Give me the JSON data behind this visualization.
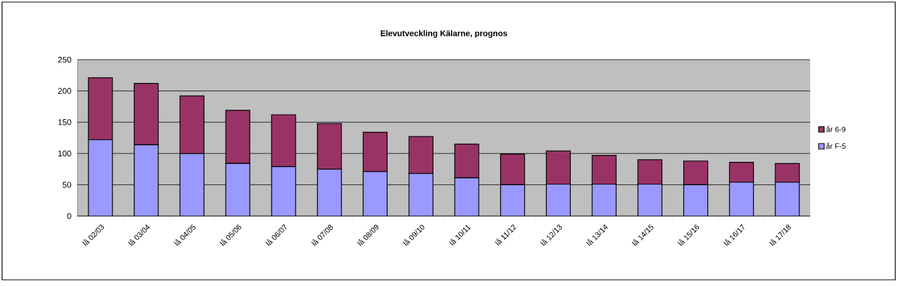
{
  "chart_data": {
    "type": "bar",
    "title": "**Elevutveckling Kälarne, prognos**",
    "categories": [
      "lå 02/03",
      "lå 03/04",
      "lå 04/05",
      "lå 05/06",
      "lå 06/07",
      "lå 07/08",
      "lå 08/09",
      "lå 09/10",
      "lå 10/11",
      "lå 11/12",
      "lå 12/13",
      "lå 13/14",
      "lå 14/15",
      "lå 15/16",
      "lå 16/17",
      "lå 17/18"
    ],
    "series": [
      {
        "name": "år F-5",
        "color": "#9999ff",
        "values": [
          122,
          114,
          100,
          84,
          79,
          75,
          71,
          68,
          61,
          50,
          51,
          51,
          51,
          50,
          54,
          54
        ]
      },
      {
        "name": "år 6-9",
        "color": "#993366",
        "values": [
          99,
          98,
          92,
          85,
          83,
          73,
          63,
          59,
          54,
          49,
          53,
          46,
          39,
          38,
          32,
          30
        ]
      }
    ],
    "stacked": true,
    "ylim": [
      0,
      250
    ],
    "yticks": [
      0,
      50,
      100,
      150,
      200,
      250
    ],
    "grid": "y",
    "legend": "right"
  }
}
